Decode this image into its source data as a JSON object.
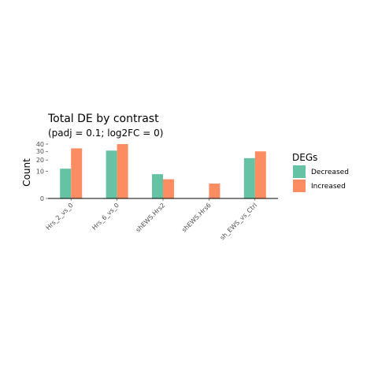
{
  "chart_data": {
    "type": "bar",
    "title": "Total DE by contrast",
    "subtitle": "(padj = 0.1; log2FC = 0)",
    "xlabel": "",
    "ylabel": "Count",
    "categories": [
      "Hrs_2_vs_0",
      "Hrs_6_vs_0",
      "shEWS.Hrs2",
      "shEWS.Hrs6",
      "sh_EWS_vs_Ctrl"
    ],
    "series": [
      {
        "name": "Decreased",
        "color": "#66c2a5",
        "values": [
          12,
          31,
          8,
          0,
          22
        ]
      },
      {
        "name": "Increased",
        "color": "#fc8d62",
        "values": [
          34,
          40,
          5,
          3,
          30
        ]
      }
    ],
    "yticks": [
      0,
      10,
      20,
      30,
      40
    ],
    "ytick_labels": [
      "0",
      "10",
      "20",
      "30",
      "40"
    ],
    "y_scale": "sqrt",
    "ylim": [
      0,
      40
    ],
    "grid": false,
    "legend": {
      "title": "DEGs",
      "position": "right"
    }
  }
}
